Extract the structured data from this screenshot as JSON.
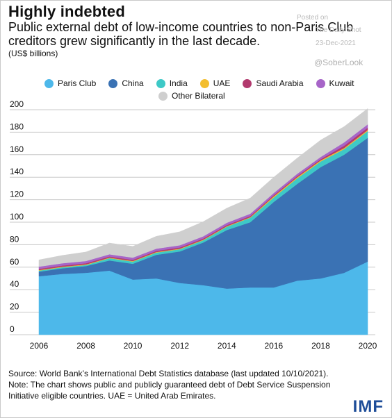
{
  "header": {
    "title": "Highly indebted",
    "subtitle": "Public external debt of low-income countries to non-Paris Club creditors grew significantly in the last decade.",
    "units": "(US$ billions)"
  },
  "watermark": {
    "posted": "Posted on",
    "blog": "The Daily Shot",
    "date": "23-Dec-2021",
    "handle": "@SoberLook"
  },
  "legend": [
    {
      "label": "Paris Club",
      "color": "#4db8ea"
    },
    {
      "label": "China",
      "color": "#3a72b4"
    },
    {
      "label": "India",
      "color": "#3ec9c7"
    },
    {
      "label": "UAE",
      "color": "#f3be2f"
    },
    {
      "label": "Saudi Arabia",
      "color": "#b23a6e"
    },
    {
      "label": "Kuwait",
      "color": "#a765c8"
    },
    {
      "label": "Other Bilateral",
      "color": "#cfcfcf"
    }
  ],
  "chart_data": {
    "type": "area",
    "stacked": true,
    "x": [
      2006,
      2007,
      2008,
      2009,
      2010,
      2011,
      2012,
      2013,
      2014,
      2015,
      2016,
      2017,
      2018,
      2019,
      2020
    ],
    "x_ticks": [
      "2006",
      "2008",
      "2010",
      "2012",
      "2014",
      "2016",
      "2018",
      "2020"
    ],
    "y_ticks": [
      "0",
      "20",
      "40",
      "60",
      "80",
      "100",
      "120",
      "140",
      "160",
      "180",
      "200"
    ],
    "ylim": [
      0,
      200
    ],
    "series": [
      {
        "name": "Paris Club",
        "color": "#4db8ea",
        "values": [
          52,
          54,
          55,
          57,
          49,
          50,
          46,
          44,
          41,
          42,
          42,
          48,
          50,
          55,
          65
        ]
      },
      {
        "name": "China",
        "color": "#3a72b4",
        "values": [
          4,
          5,
          6,
          9,
          14,
          21,
          28,
          38,
          52,
          58,
          76,
          86,
          99,
          105,
          110
        ]
      },
      {
        "name": "India",
        "color": "#3ec9c7",
        "values": [
          1,
          1,
          1,
          2,
          2,
          2,
          2,
          2,
          3,
          4,
          4,
          5,
          5,
          5,
          6
        ]
      },
      {
        "name": "UAE",
        "color": "#f3be2f",
        "values": [
          0.5,
          0.5,
          0.5,
          0.5,
          0.5,
          0.5,
          0.5,
          0.5,
          0.5,
          0.5,
          1,
          1,
          1,
          1,
          1
        ]
      },
      {
        "name": "Saudi Arabia",
        "color": "#b23a6e",
        "values": [
          1,
          1,
          1,
          1,
          1,
          1,
          1,
          1,
          1,
          1,
          1,
          1,
          1,
          2,
          2
        ]
      },
      {
        "name": "Kuwait",
        "color": "#a765c8",
        "values": [
          2,
          2,
          2,
          2,
          2,
          2,
          2,
          2,
          2,
          2,
          2,
          2,
          2,
          3,
          3
        ]
      },
      {
        "name": "Other Bilateral",
        "color": "#cfcfcf",
        "values": [
          6,
          7,
          8,
          10,
          10,
          11,
          12,
          13,
          13,
          14,
          14,
          14,
          15,
          14,
          14
        ]
      }
    ]
  },
  "footer": {
    "source": "Source: World Bank’s International Debt Statistics database (last updated 10/10/2021).",
    "note1": "Note: The chart shows public and publicly guaranteed debt of Debt Service Suspension",
    "note2": "Initiative eligible countries. UAE = United Arab Emirates.",
    "logo": "IMF"
  }
}
